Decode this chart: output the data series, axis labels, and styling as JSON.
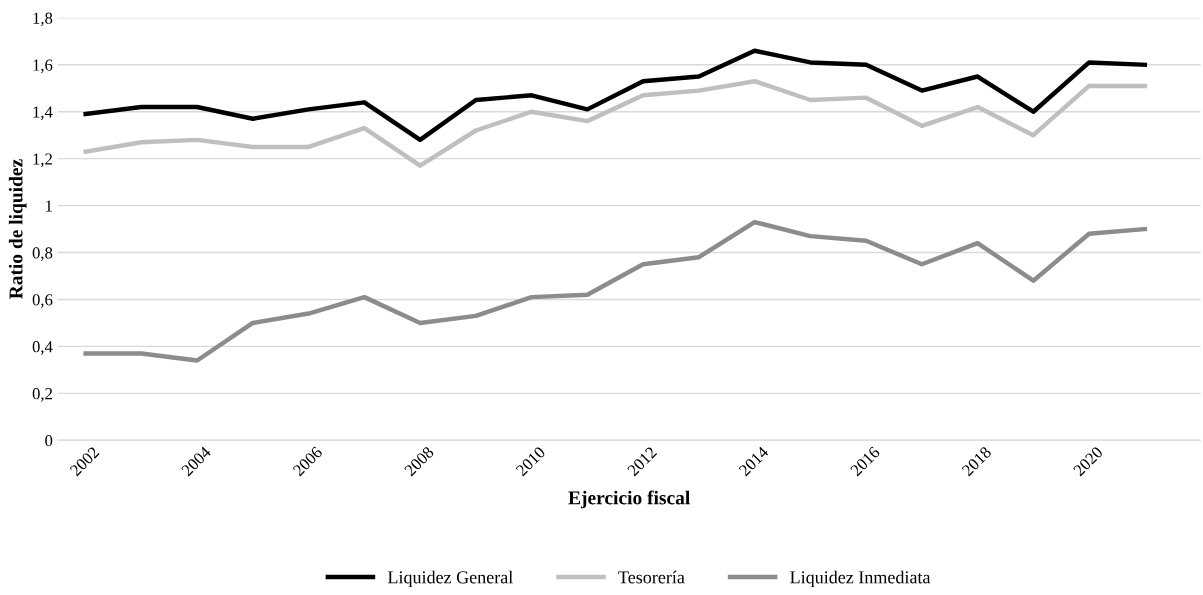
{
  "chart_data": {
    "type": "line",
    "xlabel": "Ejercicio fiscal",
    "ylabel": "Ratio de liquidez",
    "x": [
      2002,
      2003,
      2004,
      2005,
      2006,
      2007,
      2008,
      2009,
      2010,
      2011,
      2012,
      2013,
      2014,
      2015,
      2016,
      2017,
      2018,
      2019,
      2020,
      2021
    ],
    "series": [
      {
        "name": "Liquidez General",
        "color": "#000000",
        "values": [
          1.39,
          1.42,
          1.42,
          1.37,
          1.41,
          1.44,
          1.28,
          1.45,
          1.47,
          1.41,
          1.53,
          1.55,
          1.66,
          1.61,
          1.6,
          1.49,
          1.55,
          1.4,
          1.61,
          1.6
        ]
      },
      {
        "name": "Tesorería",
        "color": "#bfbfbf",
        "values": [
          1.23,
          1.27,
          1.28,
          1.25,
          1.25,
          1.33,
          1.17,
          1.32,
          1.4,
          1.36,
          1.47,
          1.49,
          1.53,
          1.45,
          1.46,
          1.34,
          1.42,
          1.3,
          1.51,
          1.51
        ]
      },
      {
        "name": "Liquidez Inmediata",
        "color": "#8c8c8c",
        "values": [
          0.37,
          0.37,
          0.34,
          0.5,
          0.54,
          0.61,
          0.5,
          0.53,
          0.61,
          0.62,
          0.75,
          0.78,
          0.93,
          0.87,
          0.85,
          0.75,
          0.84,
          0.68,
          0.88,
          0.9
        ]
      }
    ],
    "xlim": [
      2001.5,
      2022.0
    ],
    "xticks": [
      2002,
      2004,
      2006,
      2008,
      2010,
      2012,
      2014,
      2016,
      2018,
      2020
    ],
    "ylim": [
      0,
      1.8
    ],
    "yticks": [
      0,
      {
        "value": 0.2,
        "label": "0,2"
      },
      {
        "value": 0.4,
        "label": "0,4"
      },
      {
        "value": 0.6,
        "label": "0,6"
      },
      {
        "value": 0.8,
        "label": "0,8"
      },
      1,
      {
        "value": 1.2,
        "label": "1,2"
      },
      {
        "value": 1.4,
        "label": "1,4"
      },
      {
        "value": 1.6,
        "label": "1,6"
      },
      {
        "value": 1.8,
        "label": "1,8"
      }
    ],
    "grid": "y",
    "legend": "bottom",
    "marker": "none",
    "line_style": "solid"
  }
}
